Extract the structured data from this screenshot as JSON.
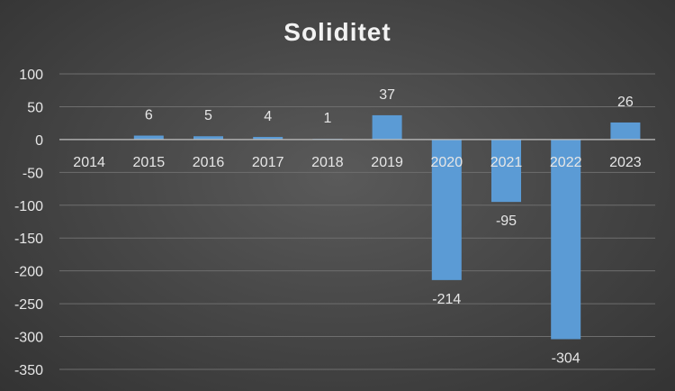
{
  "chart_data": {
    "type": "bar",
    "title": "Soliditet",
    "xlabel": "",
    "ylabel": "",
    "categories": [
      "2014",
      "2015",
      "2016",
      "2017",
      "2018",
      "2019",
      "2020",
      "2021",
      "2022",
      "2023"
    ],
    "values": [
      null,
      6,
      5,
      4,
      1,
      37,
      -214,
      -95,
      -304,
      26
    ],
    "data_labels": [
      "",
      "6",
      "5",
      "4",
      "1",
      "37",
      "-214",
      "-95",
      "-304",
      "26"
    ],
    "ylim": [
      -350,
      100
    ],
    "yticks": [
      100,
      50,
      0,
      -50,
      -100,
      -150,
      -200,
      -250,
      -300,
      -350
    ],
    "grid": true,
    "legend": "none",
    "colors": {
      "bar": "#5b9bd5",
      "gridline": "#6e6e6e",
      "zero_axis": "#bfbfbf",
      "text": "#e6e6e6"
    }
  }
}
